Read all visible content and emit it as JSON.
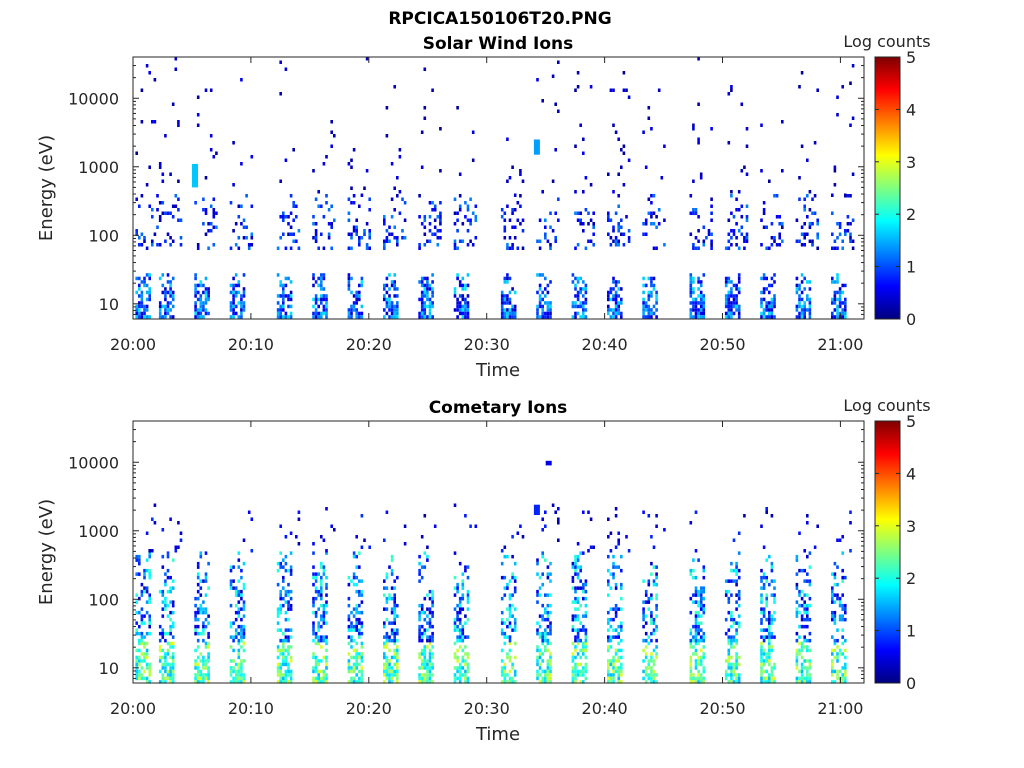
{
  "figure_title": "RPCICA150106T20.PNG",
  "colors": {
    "axis": "#262626",
    "colormap": "jet",
    "colormap_stops": [
      "#00007f",
      "#0000ff",
      "#007fff",
      "#00ffff",
      "#7fff7f",
      "#ffff00",
      "#ff7f00",
      "#ff0000",
      "#7f0000"
    ]
  },
  "chart_data": [
    {
      "type": "heatmap",
      "title": "Solar Wind Ions",
      "xlabel": "Time",
      "ylabel": "Energy (eV)",
      "yscale": "log",
      "ylim": [
        6,
        40000
      ],
      "xlim": [
        "20:00",
        "21:02"
      ],
      "x_ticks": [
        "20:00",
        "20:10",
        "20:20",
        "20:30",
        "20:40",
        "20:50",
        "21:00"
      ],
      "y_ticks": [
        10,
        100,
        1000,
        10000
      ],
      "y_tick_labels": [
        "10",
        "100",
        "1000",
        "10000"
      ],
      "colorbar": {
        "label": "Log counts",
        "range": [
          0,
          5
        ],
        "ticks": [
          "0",
          "1",
          "2",
          "3",
          "4",
          "5"
        ]
      },
      "scan_period_min": 3.2,
      "scan_start_times": [
        "20:00",
        "20:02",
        "20:05",
        "20:08",
        "20:12",
        "20:15",
        "20:18",
        "20:21",
        "20:24",
        "20:27",
        "20:31",
        "20:34",
        "20:37",
        "20:40",
        "20:43",
        "20:47",
        "20:50",
        "20:53",
        "20:56",
        "20:59"
      ],
      "bands": [
        {
          "energy_range_eV": [
            6,
            28
          ],
          "level_range": [
            0.3,
            1.8
          ],
          "occupancy": 0.85,
          "note": "low-energy stripes"
        },
        {
          "energy_range_eV": [
            60,
            400
          ],
          "level_range": [
            0.2,
            1.3
          ],
          "occupancy": 0.28,
          "note": "solar wind proton population"
        },
        {
          "energy_range_eV": [
            400,
            40000
          ],
          "level_range": [
            0.1,
            0.6
          ],
          "occupancy": 0.035,
          "note": "sparse background"
        }
      ],
      "features": [
        {
          "time": "20:05",
          "energy_range_eV": [
            500,
            1100
          ],
          "level": 1.6
        },
        {
          "time": "20:34",
          "energy_range_eV": [
            1500,
            2500
          ],
          "level": 1.4
        }
      ],
      "grid": false
    },
    {
      "type": "heatmap",
      "title": "Cometary Ions",
      "xlabel": "Time",
      "ylabel": "Energy (eV)",
      "yscale": "log",
      "ylim": [
        6,
        40000
      ],
      "xlim": [
        "20:00",
        "21:02"
      ],
      "x_ticks": [
        "20:00",
        "20:10",
        "20:20",
        "20:30",
        "20:40",
        "20:50",
        "21:00"
      ],
      "y_ticks": [
        10,
        100,
        1000,
        10000
      ],
      "y_tick_labels": [
        "10",
        "100",
        "1000",
        "10000"
      ],
      "colorbar": {
        "label": "Log counts",
        "range": [
          0,
          5
        ],
        "ticks": [
          "0",
          "1",
          "2",
          "3",
          "4",
          "5"
        ]
      },
      "scan_period_min": 3.2,
      "scan_start_times": [
        "20:00",
        "20:02",
        "20:05",
        "20:08",
        "20:12",
        "20:15",
        "20:18",
        "20:21",
        "20:24",
        "20:27",
        "20:31",
        "20:34",
        "20:37",
        "20:40",
        "20:43",
        "20:47",
        "20:50",
        "20:53",
        "20:56",
        "20:59"
      ],
      "bands": [
        {
          "energy_range_eV": [
            6,
            24
          ],
          "level_range": [
            1.5,
            3.0
          ],
          "occupancy": 0.9,
          "note": "bright low-energy stripes"
        },
        {
          "energy_range_eV": [
            24,
            500
          ],
          "level_range": [
            0.3,
            2.2
          ],
          "occupancy": 0.55,
          "note": "broad cometary ion plumes"
        },
        {
          "energy_range_eV": [
            500,
            2500
          ],
          "level_range": [
            0.2,
            0.9
          ],
          "occupancy": 0.06,
          "note": "sparse upper extension"
        }
      ],
      "features": [
        {
          "time": "20:35",
          "energy_range_eV": [
            9000,
            10500
          ],
          "level": 0.5
        },
        {
          "time": "20:34",
          "energy_range_eV": [
            1700,
            2400
          ],
          "level": 0.8
        }
      ],
      "grid": false
    }
  ]
}
